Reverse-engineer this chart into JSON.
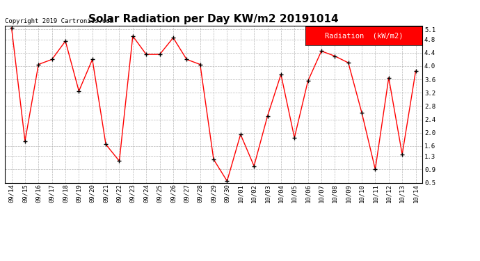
{
  "title": "Solar Radiation per Day KW/m2 20191014",
  "copyright_text": "Copyright 2019 Cartronics.com",
  "legend_label": "Radiation  (kW/m2)",
  "dates": [
    "09/14",
    "09/15",
    "09/16",
    "09/17",
    "09/18",
    "09/19",
    "09/20",
    "09/21",
    "09/22",
    "09/23",
    "09/24",
    "09/25",
    "09/26",
    "09/27",
    "09/28",
    "09/29",
    "09/30",
    "10/01",
    "10/02",
    "10/03",
    "10/04",
    "10/05",
    "10/06",
    "10/07",
    "10/08",
    "10/09",
    "10/10",
    "10/11",
    "10/12",
    "10/13",
    "10/14"
  ],
  "values": [
    5.15,
    1.75,
    4.05,
    4.2,
    4.75,
    3.25,
    4.2,
    1.65,
    1.15,
    4.9,
    4.35,
    4.35,
    4.85,
    4.2,
    4.05,
    1.2,
    0.55,
    1.95,
    1.0,
    2.5,
    3.75,
    1.85,
    3.55,
    4.45,
    4.3,
    4.1,
    2.6,
    0.9,
    3.65,
    1.35,
    3.85
  ],
  "line_color": "#ff0000",
  "marker_color": "#000000",
  "background_color": "#ffffff",
  "grid_color": "#b0b0b0",
  "ylim": [
    0.5,
    5.2
  ],
  "yticks": [
    0.5,
    0.9,
    1.3,
    1.6,
    2.0,
    2.4,
    2.8,
    3.2,
    3.6,
    4.0,
    4.4,
    4.8,
    5.1
  ],
  "title_fontsize": 11,
  "copyright_fontsize": 6.5,
  "tick_fontsize": 6.5,
  "legend_fontsize": 7.5
}
